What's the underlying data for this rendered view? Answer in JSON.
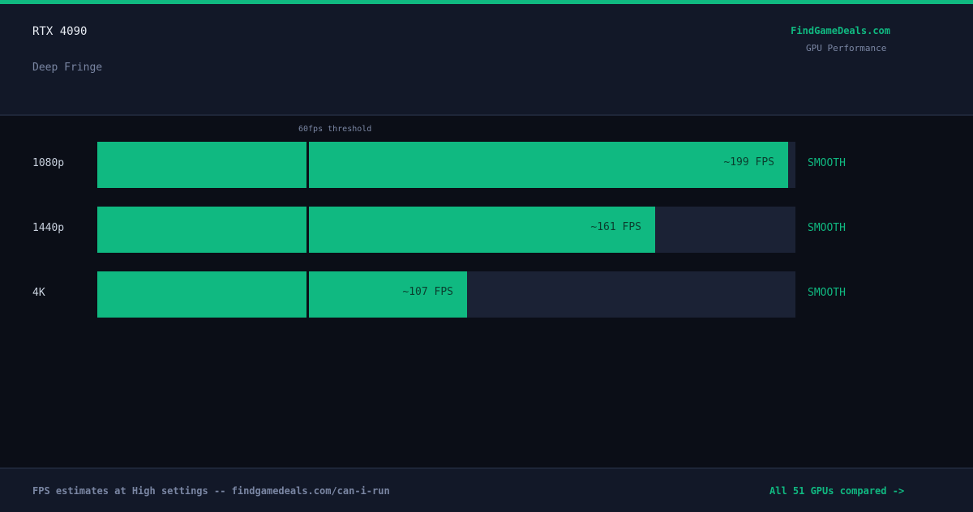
{
  "header": {
    "gpu": "RTX 4090",
    "game": "Deep Fringe",
    "brand": "FindGameDeals.com",
    "brand_subtitle": "GPU Performance"
  },
  "chart_data": {
    "type": "bar",
    "orientation": "horizontal",
    "categories": [
      "1080p",
      "1440p",
      "4K"
    ],
    "values": [
      199,
      161,
      107
    ],
    "value_labels": [
      "~199 FPS",
      "~161 FPS",
      "~107 FPS"
    ],
    "status": [
      "SMOOTH",
      "SMOOTH",
      "SMOOTH"
    ],
    "xlim": [
      0,
      200
    ],
    "threshold": {
      "value": 60,
      "label": "60fps threshold"
    },
    "colors": {
      "bar": "#10b981",
      "track": "#1b2235",
      "status": "#10b981"
    }
  },
  "footer": {
    "note": "FPS estimates at High settings -- findgamedeals.com/can-i-run",
    "link": "All 51 GPUs compared ->"
  }
}
